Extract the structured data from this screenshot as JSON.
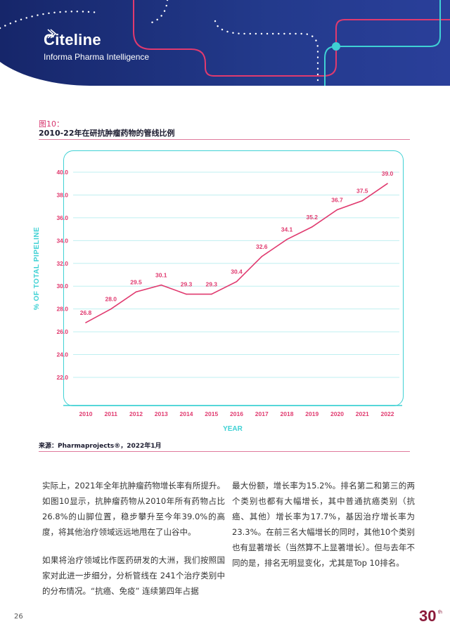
{
  "header": {
    "brand_name": "Citeline",
    "brand_sub": "Informa Pharma Intelligence",
    "colors": {
      "navy": "#1f2f78",
      "magenta": "#e03a6f",
      "teal": "#3fd1d4"
    }
  },
  "figure": {
    "label": "图10：",
    "title": "2010-22年在研抗肿瘤药物的管线比例",
    "source": "来源：Pharmaprojects®，2022年1月"
  },
  "chart_data": {
    "type": "line",
    "xlabel": "YEAR",
    "ylabel": "% OF TOTAL PIPELINE",
    "ylim": [
      21.0,
      40.0
    ],
    "yticks": [
      "40.0",
      "38.0",
      "36.0",
      "34.0",
      "32.0",
      "30.0",
      "28.0",
      "26.0",
      "24.0",
      "22.0"
    ],
    "grid": true,
    "x": [
      "2010",
      "2011",
      "2012",
      "2013",
      "2014",
      "2015",
      "2016",
      "2017",
      "2018",
      "2019",
      "2020",
      "2021",
      "2022"
    ],
    "series": [
      {
        "values": [
          26.8,
          28.0,
          29.5,
          30.1,
          29.3,
          29.3,
          30.4,
          32.6,
          34.1,
          35.2,
          36.7,
          37.5,
          39.0
        ],
        "labels": [
          "26.8",
          "28.0",
          "29.5",
          "30.1",
          "29.3",
          "29.3",
          "30.4",
          "32.6",
          "34.1",
          "35.2",
          "36.7",
          "37.5",
          "39.0"
        ],
        "color": "#e03a6f"
      }
    ],
    "axis_color": "#3fd1d4",
    "tick_color": "#e03a6f"
  },
  "body": {
    "left": [
      "实际上，2021年全年抗肿瘤药物增长率有所提升。如图10显示，抗肿瘤药物从2010年所有药物占比26.8%的山脚位置，稳步攀升至今年39.0%的高度，将其他治疗领域远远地甩在了山谷中。",
      "如果将治疗领域比作医药研发的大洲，我们按照国家对此进一步细分，分析管线在 241个治疗类别中的分布情况。“抗癌、免疫” 连续第四年占据"
    ],
    "right": [
      "最大份额，增长率为15.2%。排名第二和第三的两个类别也都有大幅增长，其中普通抗癌类别（抗癌、其他）增长率为17.7%，基因治疗增长率为23.3%。在前三名大幅增长的同时，其他10个类别也有显著增长（当然算不上显著增长）。但与去年不同的是，排名无明显变化，尤其是Top 10排名。"
    ]
  },
  "footer": {
    "page_number": "26",
    "anniversary": "30",
    "anniversary_sup": "th"
  }
}
